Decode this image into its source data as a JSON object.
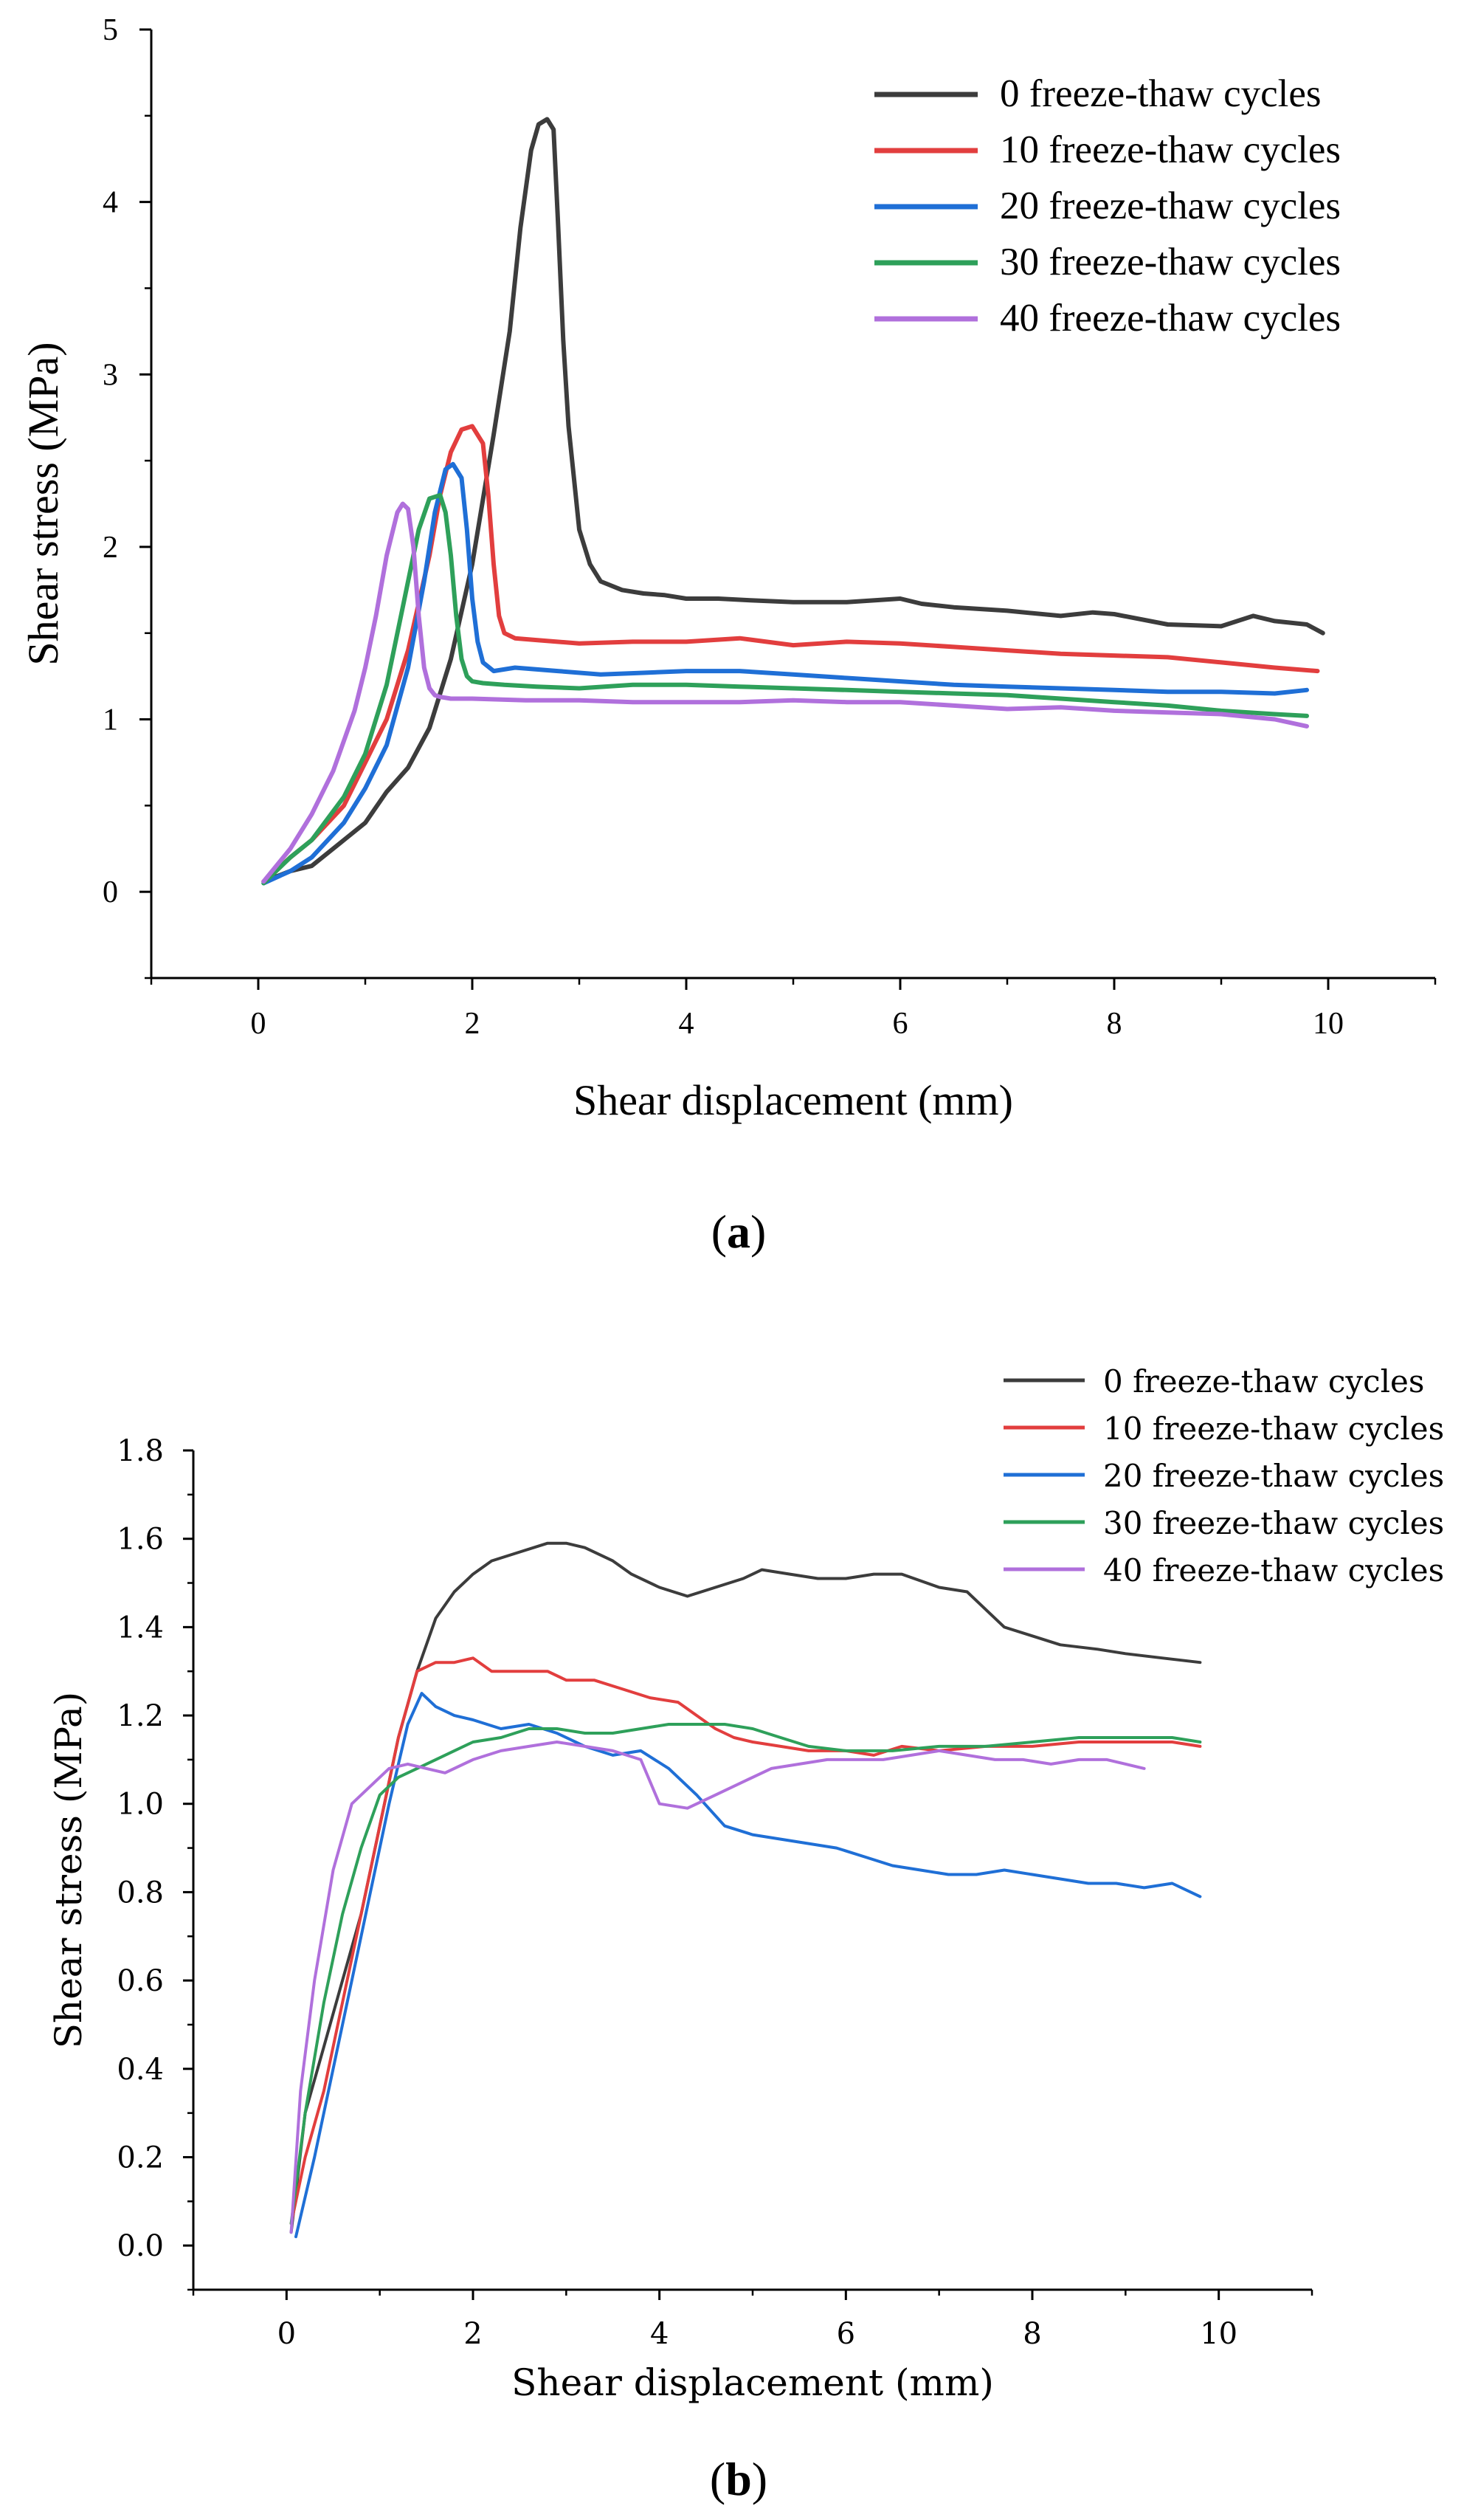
{
  "chart_data": [
    {
      "type": "line",
      "panel": "(a)",
      "panel_letter": "a",
      "xlabel": "Shear displacement (mm)",
      "ylabel": "Shear stress (MPa)",
      "xlim": [
        -1,
        11
      ],
      "ylim": [
        -0.5,
        5
      ],
      "xticks": [
        0,
        2,
        4,
        6,
        8,
        10
      ],
      "xtick_labels": [
        "0",
        "2",
        "4",
        "6",
        "8",
        "10"
      ],
      "yticks": [
        0,
        1,
        2,
        3,
        4,
        5
      ],
      "ytick_labels": [
        "0",
        "1",
        "2",
        "3",
        "4",
        "5"
      ],
      "legend_position": "top-right",
      "series": [
        {
          "name": "0 freeze-thaw cycles",
          "color": "#3c3c3c",
          "x": [
            0.05,
            0.3,
            0.5,
            0.8,
            1.0,
            1.2,
            1.4,
            1.6,
            1.8,
            2.0,
            2.2,
            2.35,
            2.45,
            2.55,
            2.62,
            2.7,
            2.76,
            2.8,
            2.85,
            2.9,
            2.95,
            3.0,
            3.1,
            3.2,
            3.4,
            3.6,
            3.8,
            4.0,
            4.3,
            4.6,
            5.0,
            5.5,
            6.0,
            6.2,
            6.5,
            7.0,
            7.5,
            7.8,
            8.0,
            8.5,
            9.0,
            9.3,
            9.5,
            9.8,
            9.95
          ],
          "y": [
            0.06,
            0.12,
            0.15,
            0.3,
            0.4,
            0.58,
            0.72,
            0.95,
            1.35,
            1.9,
            2.65,
            3.25,
            3.85,
            4.3,
            4.45,
            4.48,
            4.42,
            3.9,
            3.2,
            2.7,
            2.4,
            2.1,
            1.9,
            1.8,
            1.75,
            1.73,
            1.72,
            1.7,
            1.7,
            1.69,
            1.68,
            1.68,
            1.7,
            1.67,
            1.65,
            1.63,
            1.6,
            1.62,
            1.61,
            1.55,
            1.54,
            1.6,
            1.57,
            1.55,
            1.5
          ]
        },
        {
          "name": "10 freeze-thaw cycles",
          "color": "#e23e3e",
          "x": [
            0.05,
            0.3,
            0.5,
            0.8,
            1.0,
            1.2,
            1.4,
            1.6,
            1.7,
            1.8,
            1.9,
            2.0,
            2.1,
            2.15,
            2.2,
            2.25,
            2.3,
            2.4,
            2.6,
            3.0,
            3.5,
            4.0,
            4.5,
            5.0,
            5.5,
            6.0,
            6.5,
            7.0,
            7.5,
            8.0,
            8.5,
            9.0,
            9.5,
            9.9
          ],
          "y": [
            0.06,
            0.2,
            0.3,
            0.5,
            0.75,
            1.0,
            1.4,
            1.95,
            2.3,
            2.55,
            2.68,
            2.7,
            2.6,
            2.3,
            1.9,
            1.6,
            1.5,
            1.47,
            1.46,
            1.44,
            1.45,
            1.45,
            1.47,
            1.43,
            1.45,
            1.44,
            1.42,
            1.4,
            1.38,
            1.37,
            1.36,
            1.33,
            1.3,
            1.28
          ]
        },
        {
          "name": "20 freeze-thaw cycles",
          "color": "#1f6fd6",
          "x": [
            0.05,
            0.3,
            0.5,
            0.8,
            1.0,
            1.2,
            1.4,
            1.55,
            1.65,
            1.75,
            1.82,
            1.9,
            1.95,
            2.0,
            2.05,
            2.1,
            2.2,
            2.4,
            2.8,
            3.2,
            3.6,
            4.0,
            4.5,
            5.0,
            5.5,
            6.0,
            6.5,
            7.0,
            7.5,
            8.0,
            8.5,
            9.0,
            9.5,
            9.8
          ],
          "y": [
            0.05,
            0.12,
            0.2,
            0.4,
            0.6,
            0.85,
            1.3,
            1.8,
            2.2,
            2.45,
            2.48,
            2.4,
            2.1,
            1.7,
            1.45,
            1.33,
            1.28,
            1.3,
            1.28,
            1.26,
            1.27,
            1.28,
            1.28,
            1.26,
            1.24,
            1.22,
            1.2,
            1.19,
            1.18,
            1.17,
            1.16,
            1.16,
            1.15,
            1.17
          ]
        },
        {
          "name": "30 freeze-thaw cycles",
          "color": "#2ea05a",
          "x": [
            0.05,
            0.3,
            0.5,
            0.8,
            1.0,
            1.2,
            1.35,
            1.5,
            1.6,
            1.7,
            1.75,
            1.8,
            1.85,
            1.9,
            1.95,
            2.0,
            2.1,
            2.3,
            2.6,
            3.0,
            3.5,
            4.0,
            4.5,
            5.0,
            5.5,
            6.0,
            6.5,
            7.0,
            7.5,
            8.0,
            8.5,
            9.0,
            9.5,
            9.8
          ],
          "y": [
            0.05,
            0.2,
            0.3,
            0.55,
            0.8,
            1.2,
            1.65,
            2.1,
            2.28,
            2.3,
            2.2,
            1.95,
            1.6,
            1.35,
            1.25,
            1.22,
            1.21,
            1.2,
            1.19,
            1.18,
            1.2,
            1.2,
            1.19,
            1.18,
            1.17,
            1.16,
            1.15,
            1.14,
            1.12,
            1.1,
            1.08,
            1.05,
            1.03,
            1.02
          ]
        },
        {
          "name": "40 freeze-thaw cycles",
          "color": "#b070dc",
          "x": [
            0.05,
            0.3,
            0.5,
            0.7,
            0.9,
            1.0,
            1.1,
            1.2,
            1.3,
            1.35,
            1.4,
            1.45,
            1.5,
            1.55,
            1.6,
            1.65,
            1.7,
            1.8,
            2.0,
            2.5,
            3.0,
            3.5,
            4.0,
            4.5,
            5.0,
            5.5,
            6.0,
            6.5,
            7.0,
            7.5,
            8.0,
            8.5,
            9.0,
            9.5,
            9.8
          ],
          "y": [
            0.06,
            0.25,
            0.45,
            0.7,
            1.05,
            1.3,
            1.6,
            1.95,
            2.2,
            2.25,
            2.22,
            2.0,
            1.6,
            1.3,
            1.18,
            1.14,
            1.13,
            1.12,
            1.12,
            1.11,
            1.11,
            1.1,
            1.1,
            1.1,
            1.11,
            1.1,
            1.1,
            1.08,
            1.06,
            1.07,
            1.05,
            1.04,
            1.03,
            1.0,
            0.96
          ]
        }
      ]
    },
    {
      "type": "line",
      "panel": "(b)",
      "panel_letter": "b",
      "xlabel": "Shear displacement (mm)",
      "ylabel": "Shear stress (MPa)",
      "xlim": [
        -1,
        11
      ],
      "ylim": [
        -0.1,
        1.8
      ],
      "xticks": [
        0,
        2,
        4,
        6,
        8,
        10
      ],
      "xtick_labels": [
        "0",
        "2",
        "4",
        "6",
        "8",
        "10"
      ],
      "yticks": [
        0.0,
        0.2,
        0.4,
        0.6,
        0.8,
        1.0,
        1.2,
        1.4,
        1.6,
        1.8
      ],
      "ytick_labels": [
        "0.0",
        "0.2",
        "0.4",
        "0.6",
        "0.8",
        "1.0",
        "1.2",
        "1.4",
        "1.6",
        "1.8"
      ],
      "legend_position": "top-right, above plot",
      "series": [
        {
          "name": "0 freeze-thaw cycles",
          "color": "#3c3c3c",
          "x": [
            0.05,
            0.2,
            0.4,
            0.6,
            0.8,
            1.0,
            1.2,
            1.4,
            1.6,
            1.8,
            2.0,
            2.2,
            2.5,
            2.8,
            3.0,
            3.2,
            3.5,
            3.7,
            4.0,
            4.3,
            4.6,
            4.9,
            5.1,
            5.4,
            5.7,
            6.0,
            6.3,
            6.6,
            7.0,
            7.3,
            7.5,
            7.7,
            8.0,
            8.3,
            8.7,
            9.0,
            9.4,
            9.8
          ],
          "y": [
            0.03,
            0.3,
            0.45,
            0.6,
            0.75,
            0.95,
            1.15,
            1.3,
            1.42,
            1.48,
            1.52,
            1.55,
            1.57,
            1.59,
            1.59,
            1.58,
            1.55,
            1.52,
            1.49,
            1.47,
            1.49,
            1.51,
            1.53,
            1.52,
            1.51,
            1.51,
            1.52,
            1.52,
            1.49,
            1.48,
            1.44,
            1.4,
            1.38,
            1.36,
            1.35,
            1.34,
            1.33,
            1.32
          ]
        },
        {
          "name": "10 freeze-thaw cycles",
          "color": "#e23e3e",
          "x": [
            0.05,
            0.2,
            0.4,
            0.6,
            0.8,
            1.0,
            1.2,
            1.4,
            1.6,
            1.8,
            2.0,
            2.2,
            2.5,
            2.8,
            3.0,
            3.3,
            3.6,
            3.9,
            4.2,
            4.4,
            4.6,
            4.8,
            5.0,
            5.3,
            5.6,
            6.0,
            6.3,
            6.6,
            7.0,
            7.5,
            8.0,
            8.5,
            9.0,
            9.5,
            9.8
          ],
          "y": [
            0.05,
            0.2,
            0.35,
            0.55,
            0.75,
            0.95,
            1.15,
            1.3,
            1.32,
            1.32,
            1.33,
            1.3,
            1.3,
            1.3,
            1.28,
            1.28,
            1.26,
            1.24,
            1.23,
            1.2,
            1.17,
            1.15,
            1.14,
            1.13,
            1.12,
            1.12,
            1.11,
            1.13,
            1.12,
            1.13,
            1.13,
            1.14,
            1.14,
            1.14,
            1.13
          ]
        },
        {
          "name": "20 freeze-thaw cycles",
          "color": "#1f6fd6",
          "x": [
            0.1,
            0.3,
            0.5,
            0.7,
            0.9,
            1.1,
            1.3,
            1.45,
            1.6,
            1.8,
            2.0,
            2.3,
            2.6,
            2.9,
            3.2,
            3.5,
            3.8,
            4.1,
            4.4,
            4.7,
            5.0,
            5.3,
            5.6,
            5.9,
            6.2,
            6.5,
            6.8,
            7.1,
            7.4,
            7.7,
            8.0,
            8.3,
            8.6,
            8.9,
            9.2,
            9.5,
            9.8
          ],
          "y": [
            0.02,
            0.2,
            0.4,
            0.6,
            0.8,
            1.0,
            1.18,
            1.25,
            1.22,
            1.2,
            1.19,
            1.17,
            1.18,
            1.16,
            1.13,
            1.11,
            1.12,
            1.08,
            1.02,
            0.95,
            0.93,
            0.92,
            0.91,
            0.9,
            0.88,
            0.86,
            0.85,
            0.84,
            0.84,
            0.85,
            0.84,
            0.83,
            0.82,
            0.82,
            0.81,
            0.82,
            0.79
          ]
        },
        {
          "name": "30 freeze-thaw cycles",
          "color": "#2ea05a",
          "x": [
            0.05,
            0.2,
            0.4,
            0.6,
            0.8,
            1.0,
            1.2,
            1.4,
            1.6,
            1.8,
            2.0,
            2.3,
            2.6,
            2.9,
            3.2,
            3.5,
            3.8,
            4.1,
            4.4,
            4.7,
            5.0,
            5.3,
            5.6,
            6.0,
            6.5,
            7.0,
            7.5,
            8.0,
            8.5,
            9.0,
            9.5,
            9.8
          ],
          "y": [
            0.05,
            0.3,
            0.55,
            0.75,
            0.9,
            1.02,
            1.06,
            1.08,
            1.1,
            1.12,
            1.14,
            1.15,
            1.17,
            1.17,
            1.16,
            1.16,
            1.17,
            1.18,
            1.18,
            1.18,
            1.17,
            1.15,
            1.13,
            1.12,
            1.12,
            1.13,
            1.13,
            1.14,
            1.15,
            1.15,
            1.15,
            1.14
          ]
        },
        {
          "name": "40 freeze-thaw cycles",
          "color": "#b070dc",
          "x": [
            0.05,
            0.15,
            0.3,
            0.5,
            0.7,
            0.9,
            1.1,
            1.3,
            1.5,
            1.7,
            2.0,
            2.3,
            2.6,
            2.9,
            3.2,
            3.5,
            3.8,
            4.0,
            4.3,
            4.6,
            4.9,
            5.2,
            5.5,
            5.8,
            6.1,
            6.4,
            6.7,
            7.0,
            7.3,
            7.6,
            7.9,
            8.2,
            8.5,
            8.8,
            9.2
          ],
          "y": [
            0.03,
            0.35,
            0.6,
            0.85,
            1.0,
            1.04,
            1.08,
            1.09,
            1.08,
            1.07,
            1.1,
            1.12,
            1.13,
            1.14,
            1.13,
            1.12,
            1.1,
            1.0,
            0.99,
            1.02,
            1.05,
            1.08,
            1.09,
            1.1,
            1.1,
            1.1,
            1.11,
            1.12,
            1.11,
            1.1,
            1.1,
            1.09,
            1.1,
            1.1,
            1.08
          ]
        }
      ]
    }
  ]
}
